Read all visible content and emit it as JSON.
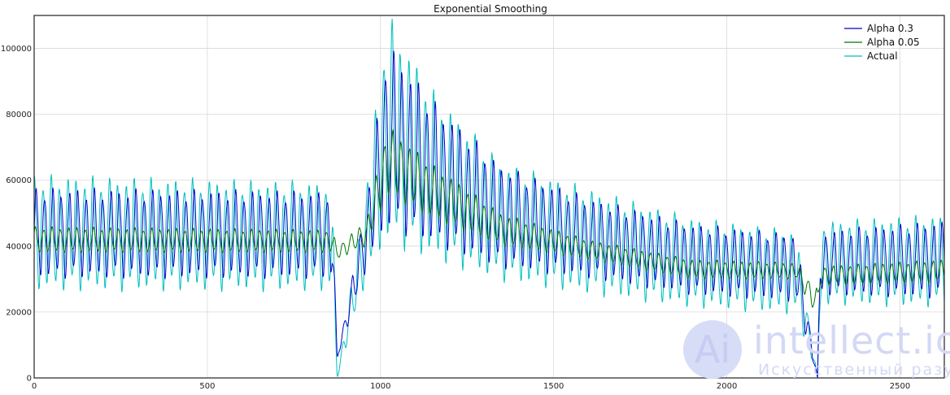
{
  "chart_data": {
    "type": "line",
    "title": "Exponential Smoothing",
    "xlabel": "",
    "ylabel": "",
    "xlim": [
      0,
      2628
    ],
    "ylim": [
      0,
      110000
    ],
    "grid": true,
    "legend_position": "top-right",
    "x_ticks": [
      0,
      500,
      1000,
      1500,
      2000,
      2500
    ],
    "y_ticks": [
      0,
      20000,
      40000,
      60000,
      80000,
      100000
    ],
    "x_tick_labels": [
      "0",
      "500",
      "1000",
      "1500",
      "2000",
      "2500"
    ],
    "y_tick_labels": [
      "0",
      "20000",
      "40000",
      "60000",
      "80000",
      "100000"
    ],
    "cycle_length": 24,
    "segments_note_x": [
      0,
      860,
      875,
      960,
      1020,
      1150,
      1350,
      1600,
      1900,
      2200,
      2262,
      2270,
      2628
    ],
    "series": [
      {
        "name": "Alpha 0.3",
        "color": "#0000cc",
        "envelope_x": [
          0,
          860,
          875,
          960,
          1020,
          1150,
          1350,
          1600,
          1900,
          2200,
          2262,
          2270,
          2628
        ],
        "upper": [
          58000,
          57000,
          6000,
          55000,
          103000,
          85000,
          65000,
          55000,
          47000,
          44000,
          0,
          45000,
          48000
        ],
        "lower": [
          30000,
          30000,
          6000,
          33000,
          45000,
          40000,
          33000,
          30000,
          25000,
          23000,
          0,
          25000,
          24000
        ]
      },
      {
        "name": "Alpha 0.05",
        "color": "#007700",
        "envelope_x": [
          0,
          860,
          875,
          960,
          1020,
          1150,
          1350,
          1600,
          1900,
          2200,
          2262,
          2270,
          2628
        ],
        "upper": [
          46000,
          45000,
          40000,
          48000,
          77000,
          65000,
          50000,
          42000,
          36000,
          35000,
          27000,
          34000,
          36000
        ],
        "lower": [
          38000,
          38000,
          36000,
          40000,
          55000,
          48000,
          40000,
          36000,
          30000,
          30000,
          18000,
          28000,
          29000
        ]
      },
      {
        "name": "Actual",
        "color": "#00bfbf",
        "envelope_x": [
          0,
          860,
          875,
          960,
          1020,
          1150,
          1350,
          1600,
          1900,
          2200,
          2262,
          2270,
          2628
        ],
        "upper": [
          62000,
          60000,
          0,
          60000,
          112000,
          88000,
          66000,
          58000,
          49000,
          45000,
          0,
          48000,
          50000
        ],
        "lower": [
          26000,
          26000,
          0,
          30000,
          40000,
          35000,
          29000,
          25000,
          21000,
          19000,
          0,
          22000,
          21000
        ]
      }
    ]
  },
  "watermark": {
    "logo": "Ai",
    "main": "intellect.icu",
    "sub": "Искусственный разум"
  }
}
